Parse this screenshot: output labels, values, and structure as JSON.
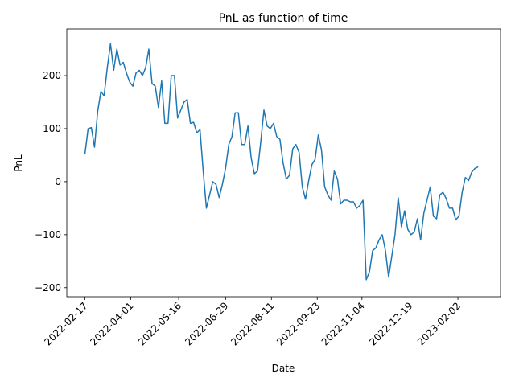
{
  "chart_data": {
    "type": "line",
    "title": "PnL as function of time",
    "x_label": "Date",
    "y_label": "PnL",
    "color": "#1f77b4",
    "grid": false,
    "x": [
      "2022-02-17",
      "2022-02-20",
      "2022-02-23",
      "2022-02-26",
      "2022-03-01",
      "2022-03-04",
      "2022-03-07",
      "2022-03-10",
      "2022-03-13",
      "2022-03-16",
      "2022-03-19",
      "2022-03-22",
      "2022-03-25",
      "2022-03-28",
      "2022-03-31",
      "2022-04-03",
      "2022-04-06",
      "2022-04-09",
      "2022-04-12",
      "2022-04-15",
      "2022-04-18",
      "2022-04-21",
      "2022-04-24",
      "2022-04-27",
      "2022-04-30",
      "2022-05-03",
      "2022-05-06",
      "2022-05-09",
      "2022-05-12",
      "2022-05-15",
      "2022-05-18",
      "2022-05-21",
      "2022-05-24",
      "2022-05-27",
      "2022-05-30",
      "2022-06-02",
      "2022-06-05",
      "2022-06-08",
      "2022-06-11",
      "2022-06-14",
      "2022-06-17",
      "2022-06-20",
      "2022-06-23",
      "2022-06-26",
      "2022-06-29",
      "2022-07-02",
      "2022-07-05",
      "2022-07-08",
      "2022-07-11",
      "2022-07-14",
      "2022-07-17",
      "2022-07-20",
      "2022-07-23",
      "2022-07-26",
      "2022-07-29",
      "2022-08-01",
      "2022-08-04",
      "2022-08-07",
      "2022-08-10",
      "2022-08-13",
      "2022-08-16",
      "2022-08-19",
      "2022-08-22",
      "2022-08-25",
      "2022-08-28",
      "2022-08-31",
      "2022-09-03",
      "2022-09-06",
      "2022-09-09",
      "2022-09-12",
      "2022-09-15",
      "2022-09-18",
      "2022-09-21",
      "2022-09-24",
      "2022-09-27",
      "2022-09-30",
      "2022-10-03",
      "2022-10-06",
      "2022-10-09",
      "2022-10-12",
      "2022-10-15",
      "2022-10-18",
      "2022-10-21",
      "2022-10-24",
      "2022-10-27",
      "2022-10-30",
      "2022-11-02",
      "2022-11-05",
      "2022-11-08",
      "2022-11-11",
      "2022-11-14",
      "2022-11-17",
      "2022-11-20",
      "2022-11-23",
      "2022-11-26",
      "2022-11-29",
      "2022-12-02",
      "2022-12-05",
      "2022-12-08",
      "2022-12-11",
      "2022-12-14",
      "2022-12-17",
      "2022-12-20",
      "2022-12-23",
      "2022-12-26",
      "2022-12-29",
      "2023-01-01",
      "2023-01-04",
      "2023-01-07",
      "2023-01-10",
      "2023-01-13",
      "2023-01-16",
      "2023-01-19",
      "2023-01-22",
      "2023-01-25",
      "2023-01-28",
      "2023-01-31",
      "2023-02-03",
      "2023-02-06",
      "2023-02-09",
      "2023-02-12",
      "2023-02-15",
      "2023-02-18",
      "2023-02-21"
    ],
    "values": [
      52,
      100,
      102,
      65,
      133,
      170,
      162,
      215,
      260,
      210,
      250,
      220,
      225,
      205,
      188,
      180,
      205,
      210,
      200,
      215,
      250,
      185,
      180,
      140,
      190,
      110,
      110,
      200,
      200,
      120,
      135,
      150,
      155,
      110,
      112,
      92,
      98,
      20,
      -50,
      -25,
      0,
      -5,
      -30,
      -5,
      25,
      70,
      85,
      130,
      130,
      70,
      70,
      105,
      45,
      15,
      20,
      75,
      135,
      105,
      100,
      110,
      85,
      80,
      35,
      5,
      12,
      62,
      70,
      55,
      -10,
      -33,
      2,
      32,
      42,
      88,
      60,
      -10,
      -25,
      -35,
      20,
      5,
      -42,
      -35,
      -35,
      -38,
      -38,
      -50,
      -45,
      -35,
      -185,
      -170,
      -130,
      -125,
      -110,
      -100,
      -130,
      -180,
      -140,
      -100,
      -30,
      -85,
      -55,
      -90,
      -100,
      -95,
      -70,
      -110,
      -60,
      -35,
      -10,
      -65,
      -70,
      -25,
      -20,
      -32,
      -50,
      -50,
      -72,
      -65,
      -20,
      8,
      2,
      18,
      25,
      28
    ],
    "xlim": [
      "2022-01-31",
      "2023-03-14"
    ],
    "xticks": [
      "2022-02-17",
      "2022-04-01",
      "2022-05-16",
      "2022-06-29",
      "2022-08-11",
      "2022-09-23",
      "2022-11-04",
      "2022-12-19",
      "2023-02-02"
    ],
    "ylim": [
      -217,
      288
    ],
    "yticks": [
      {
        "value": -200,
        "label": "−200"
      },
      {
        "value": -100,
        "label": "−100"
      },
      0,
      100,
      200
    ]
  }
}
